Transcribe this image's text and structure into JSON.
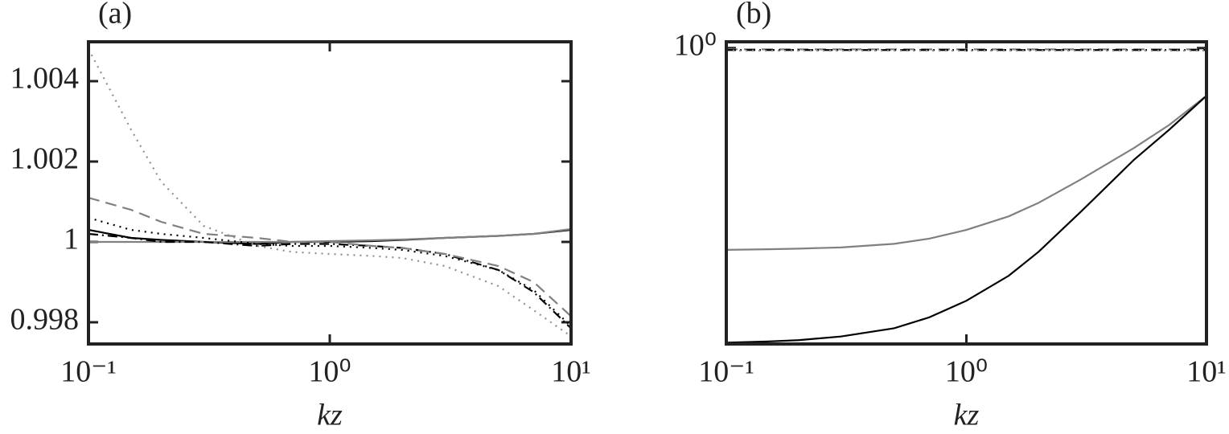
{
  "chart_data": [
    {
      "type": "line",
      "title": "(a)",
      "xlabel": "kz",
      "xscale": "log",
      "yscale": "linear",
      "x": [
        0.1,
        0.15,
        0.2,
        0.3,
        0.5,
        0.7,
        1,
        1.5,
        2,
        3,
        5,
        7,
        10
      ],
      "xlim": [
        0.1,
        10
      ],
      "xticks": [
        {
          "value": 0.1,
          "label": "10⁻¹"
        },
        {
          "value": 1,
          "label": "10⁰"
        },
        {
          "value": 10,
          "label": "10¹"
        }
      ],
      "ylim": [
        0.99746,
        1.00498
      ],
      "yticks": [
        {
          "value": 0.998,
          "label": "0.998"
        },
        1,
        {
          "value": 1.002,
          "label": "1.002"
        },
        {
          "value": 1.004,
          "label": "1.004"
        }
      ],
      "series": [
        {
          "color": "#000000",
          "dash": "solid",
          "values": [
            1.0003,
            1.0001,
            1.00005,
            1.0,
            0.99995,
            1.0,
            1.0,
            1.00002,
            1.00005,
            1.0001,
            1.00015,
            1.0002,
            1.0003
          ]
        },
        {
          "color": "#808080",
          "dash": "solid",
          "values": [
            1.0,
            1.0,
            1.0,
            1.0,
            1.0,
            1.0,
            1.00002,
            1.00004,
            1.00006,
            1.0001,
            1.00015,
            1.0002,
            1.00032
          ]
        },
        {
          "color": "#000000",
          "dash": "dashdot",
          "values": [
            1.0002,
            1.0001,
            1.0,
            1.0,
            0.9999,
            0.99995,
            0.99995,
            0.9999,
            0.99985,
            0.9997,
            0.9993,
            0.99875,
            0.99785
          ]
        },
        {
          "color": "#000000",
          "dash": "dotted",
          "values": [
            1.0006,
            1.0003,
            1.0002,
            1.0001,
            0.99995,
            0.9999,
            0.9999,
            0.99985,
            0.9998,
            0.99965,
            0.9993,
            0.9988,
            0.9979
          ]
        },
        {
          "color": "#808080",
          "dash": "dashed",
          "values": [
            1.0011,
            1.0008,
            1.0005,
            1.0002,
            1.0001,
            1.0,
            1.0,
            0.9999,
            0.99985,
            0.9997,
            0.9994,
            0.999,
            0.99815
          ]
        },
        {
          "color": "#909090",
          "dash": "dotted",
          "values": [
            1.0048,
            1.0028,
            1.0015,
            1.0004,
            0.9999,
            0.99975,
            0.9997,
            0.99965,
            0.9996,
            0.9994,
            0.9989,
            0.9983,
            0.99765
          ]
        }
      ]
    },
    {
      "type": "line",
      "title": "(b)",
      "xlabel": "kz",
      "xscale": "log",
      "yscale": "log",
      "x": [
        0.1,
        0.15,
        0.2,
        0.3,
        0.5,
        0.7,
        1,
        1.5,
        2,
        3,
        5,
        7,
        10
      ],
      "xlim": [
        0.1,
        10
      ],
      "xticks": [
        {
          "value": 0.1,
          "label": "10⁻¹"
        },
        {
          "value": 1,
          "label": "10⁰"
        },
        {
          "value": 10,
          "label": "10¹"
        }
      ],
      "ylim": [
        0.1,
        1.05
      ],
      "yticks": [
        {
          "value": 1,
          "label": "10⁰"
        }
      ],
      "series": [
        {
          "color": "#808080",
          "dash": "solid",
          "values": [
            0.208,
            0.209,
            0.21,
            0.212,
            0.218,
            0.227,
            0.243,
            0.27,
            0.3,
            0.36,
            0.46,
            0.55,
            0.69
          ]
        },
        {
          "color": "#000000",
          "dash": "solid",
          "values": [
            0.101,
            0.102,
            0.103,
            0.106,
            0.113,
            0.123,
            0.14,
            0.17,
            0.205,
            0.28,
            0.42,
            0.53,
            0.69
          ]
        },
        {
          "color": "#808080",
          "dash": "dashed",
          "values": [
            0.99,
            0.99,
            0.99,
            0.99,
            0.99,
            0.99,
            0.99,
            0.99,
            0.99,
            0.99,
            0.99,
            0.99,
            0.99
          ]
        },
        {
          "color": "#000000",
          "dash": "dashdot",
          "values": [
            0.985,
            0.985,
            0.985,
            0.985,
            0.985,
            0.985,
            0.985,
            0.985,
            0.985,
            0.985,
            0.985,
            0.985,
            0.985
          ]
        },
        {
          "color": "#909090",
          "dash": "dotted",
          "values": [
            0.98,
            0.98,
            0.98,
            0.98,
            0.98,
            0.98,
            0.98,
            0.98,
            0.98,
            0.98,
            0.98,
            0.98,
            0.98
          ]
        }
      ]
    }
  ]
}
